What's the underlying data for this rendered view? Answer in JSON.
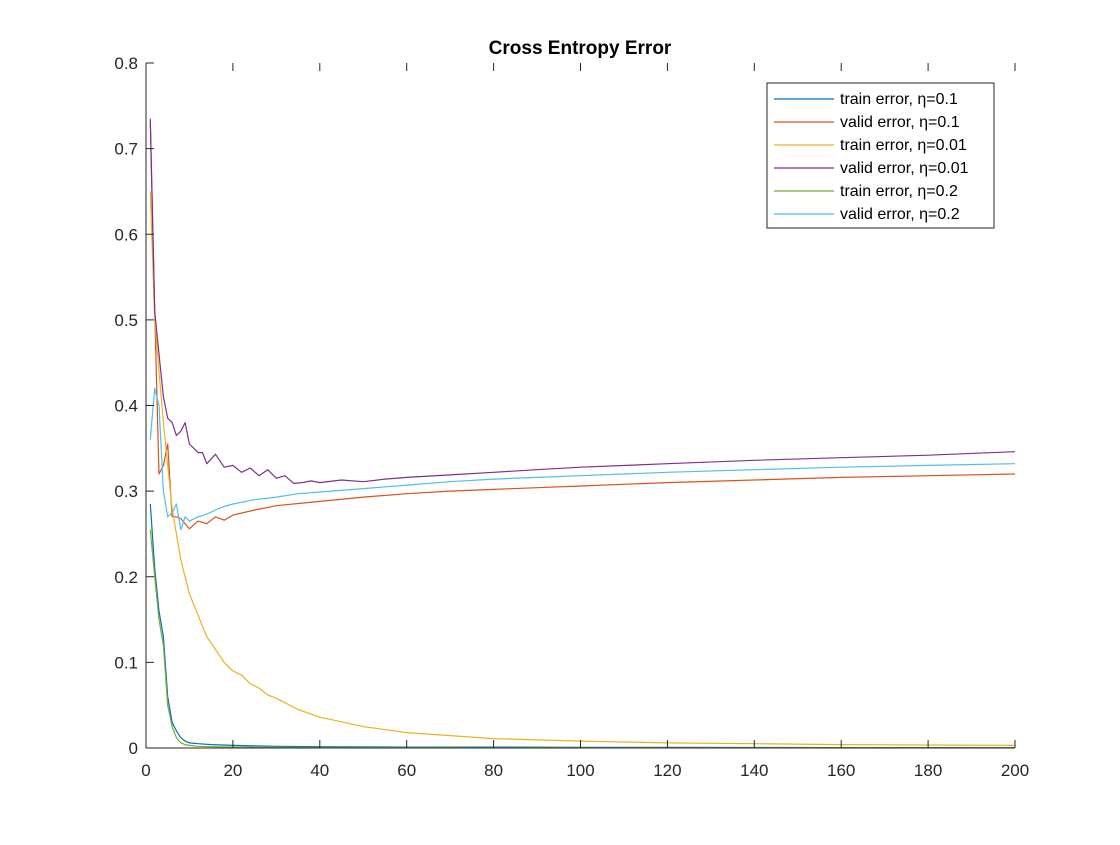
{
  "chart_data": {
    "type": "line",
    "title": "Cross Entropy Error",
    "xlabel": "",
    "ylabel": "",
    "xlim": [
      0,
      200
    ],
    "ylim": [
      0,
      0.8
    ],
    "xticks": [
      "0",
      "20",
      "40",
      "60",
      "80",
      "100",
      "120",
      "140",
      "160",
      "180",
      "200"
    ],
    "yticks": [
      "0",
      "0.1",
      "0.2",
      "0.3",
      "0.4",
      "0.5",
      "0.6",
      "0.7",
      "0.8"
    ],
    "grid": false,
    "legend_position": "top-right",
    "series": [
      {
        "name": "train error, η=0.1",
        "color": "#0072bd",
        "x": [
          1,
          2,
          3,
          4,
          5,
          6,
          7,
          8,
          9,
          10,
          12,
          15,
          20,
          30,
          40,
          60,
          80,
          100,
          120,
          140,
          160,
          180,
          200
        ],
        "y": [
          0.285,
          0.21,
          0.16,
          0.13,
          0.06,
          0.03,
          0.02,
          0.012,
          0.008,
          0.006,
          0.005,
          0.004,
          0.003,
          0.002,
          0.0015,
          0.001,
          0.001,
          0.0008,
          0.0007,
          0.0006,
          0.0005,
          0.0005,
          0.0005
        ]
      },
      {
        "name": "valid error, η=0.1",
        "color": "#d95319",
        "x": [
          1,
          2,
          3,
          4,
          5,
          6,
          7,
          8,
          9,
          10,
          12,
          14,
          16,
          18,
          20,
          25,
          30,
          40,
          50,
          60,
          70,
          80,
          90,
          100,
          120,
          140,
          160,
          180,
          200
        ],
        "y": [
          0.73,
          0.51,
          0.32,
          0.33,
          0.355,
          0.27,
          0.27,
          0.268,
          0.262,
          0.256,
          0.265,
          0.262,
          0.27,
          0.266,
          0.272,
          0.278,
          0.283,
          0.288,
          0.293,
          0.297,
          0.3,
          0.302,
          0.304,
          0.306,
          0.31,
          0.313,
          0.316,
          0.318,
          0.32
        ]
      },
      {
        "name": "train error, η=0.01",
        "color": "#edb120",
        "x": [
          1,
          2,
          3,
          4,
          5,
          6,
          7,
          8,
          9,
          10,
          12,
          14,
          16,
          18,
          20,
          22,
          24,
          26,
          28,
          30,
          35,
          40,
          50,
          60,
          80,
          100,
          120,
          140,
          160,
          180,
          200
        ],
        "y": [
          0.65,
          0.5,
          0.44,
          0.38,
          0.33,
          0.28,
          0.25,
          0.22,
          0.2,
          0.18,
          0.155,
          0.13,
          0.115,
          0.1,
          0.09,
          0.085,
          0.075,
          0.07,
          0.062,
          0.058,
          0.045,
          0.036,
          0.025,
          0.018,
          0.011,
          0.008,
          0.006,
          0.005,
          0.004,
          0.0035,
          0.003
        ]
      },
      {
        "name": "valid error, η=0.01",
        "color": "#7e2f8e",
        "x": [
          1,
          2,
          3,
          4,
          5,
          6,
          7,
          8,
          9,
          10,
          11,
          12,
          13,
          14,
          16,
          18,
          20,
          22,
          24,
          26,
          28,
          30,
          32,
          34,
          36,
          38,
          40,
          45,
          50,
          55,
          60,
          70,
          80,
          90,
          100,
          120,
          140,
          160,
          180,
          200
        ],
        "y": [
          0.735,
          0.51,
          0.46,
          0.41,
          0.385,
          0.38,
          0.365,
          0.37,
          0.38,
          0.355,
          0.35,
          0.345,
          0.345,
          0.332,
          0.343,
          0.328,
          0.33,
          0.322,
          0.327,
          0.318,
          0.325,
          0.315,
          0.318,
          0.309,
          0.31,
          0.312,
          0.31,
          0.313,
          0.311,
          0.314,
          0.316,
          0.319,
          0.322,
          0.325,
          0.328,
          0.332,
          0.336,
          0.339,
          0.342,
          0.346
        ]
      },
      {
        "name": "train error, η=0.2",
        "color": "#77ac30",
        "x": [
          1,
          2,
          3,
          4,
          5,
          6,
          7,
          8,
          9,
          10,
          12,
          15,
          20,
          30,
          40,
          60,
          80,
          100,
          120,
          140,
          160,
          180,
          200
        ],
        "y": [
          0.255,
          0.2,
          0.15,
          0.12,
          0.05,
          0.025,
          0.012,
          0.006,
          0.004,
          0.003,
          0.002,
          0.0015,
          0.001,
          0.0008,
          0.0006,
          0.0005,
          0.0004,
          0.0004,
          0.0003,
          0.0003,
          0.0003,
          0.0003,
          0.0003
        ]
      },
      {
        "name": "valid error, η=0.2",
        "color": "#4dbeee",
        "x": [
          1,
          2,
          3,
          4,
          5,
          6,
          7,
          8,
          9,
          10,
          12,
          14,
          16,
          18,
          20,
          25,
          30,
          35,
          40,
          50,
          60,
          70,
          80,
          90,
          100,
          120,
          140,
          160,
          180,
          200
        ],
        "y": [
          0.36,
          0.42,
          0.4,
          0.3,
          0.27,
          0.275,
          0.285,
          0.255,
          0.27,
          0.265,
          0.27,
          0.273,
          0.278,
          0.282,
          0.285,
          0.29,
          0.293,
          0.297,
          0.299,
          0.303,
          0.307,
          0.311,
          0.314,
          0.316,
          0.318,
          0.322,
          0.325,
          0.328,
          0.33,
          0.332
        ]
      }
    ]
  }
}
